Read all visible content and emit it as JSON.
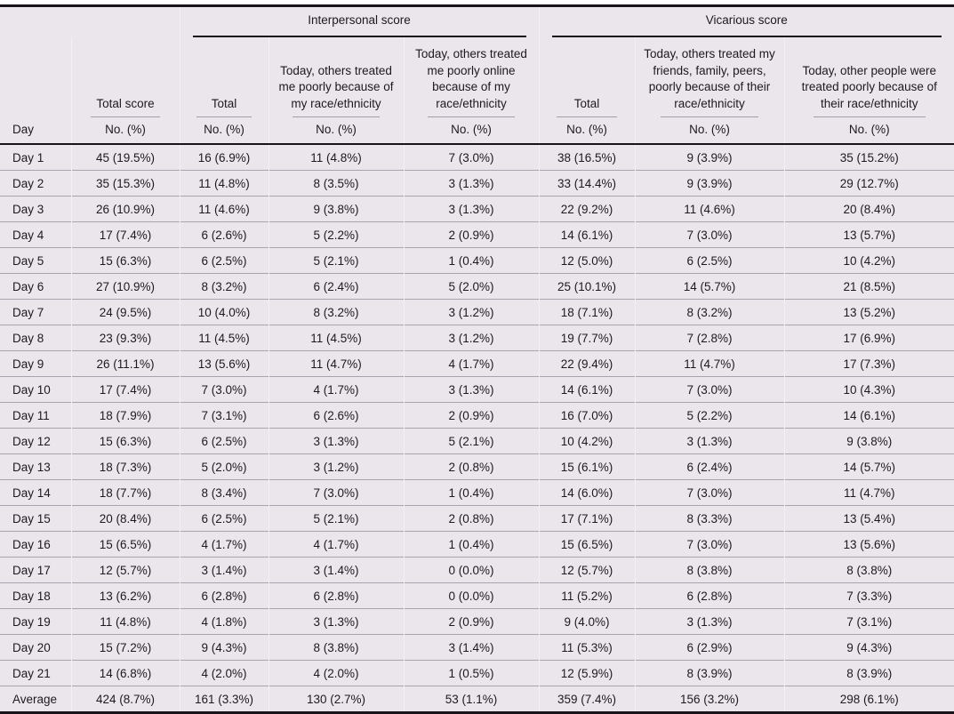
{
  "table": {
    "day_label": "Day",
    "no_pct": "No. (%)",
    "groups": [
      {
        "label": "Interpersonal score"
      },
      {
        "label": "Vicarious score"
      }
    ],
    "columns": [
      {
        "label": "Total score"
      },
      {
        "label": "Total"
      },
      {
        "label": "Today, others treated me poorly because of my race/ethnicity"
      },
      {
        "label": "Today, others treated me poorly online because of my race/ethnicity"
      },
      {
        "label": "Total"
      },
      {
        "label": "Today, others treated my friends, family, peers, poorly because of their race/ethnicity"
      },
      {
        "label": "Today, other people were treated poorly because of their race/ethnicity"
      }
    ],
    "rows": [
      {
        "day": "Day 1",
        "values": [
          "45 (19.5%)",
          "16 (6.9%)",
          "11 (4.8%)",
          "7 (3.0%)",
          "38 (16.5%)",
          "9 (3.9%)",
          "35 (15.2%)"
        ]
      },
      {
        "day": "Day 2",
        "values": [
          "35 (15.3%)",
          "11 (4.8%)",
          "8 (3.5%)",
          "3 (1.3%)",
          "33 (14.4%)",
          "9 (3.9%)",
          "29 (12.7%)"
        ]
      },
      {
        "day": "Day 3",
        "values": [
          "26 (10.9%)",
          "11 (4.6%)",
          "9 (3.8%)",
          "3 (1.3%)",
          "22 (9.2%)",
          "11 (4.6%)",
          "20 (8.4%)"
        ]
      },
      {
        "day": "Day 4",
        "values": [
          "17 (7.4%)",
          "6 (2.6%)",
          "5 (2.2%)",
          "2 (0.9%)",
          "14 (6.1%)",
          "7 (3.0%)",
          "13 (5.7%)"
        ]
      },
      {
        "day": "Day 5",
        "values": [
          "15 (6.3%)",
          "6 (2.5%)",
          "5 (2.1%)",
          "1 (0.4%)",
          "12 (5.0%)",
          "6 (2.5%)",
          "10 (4.2%)"
        ]
      },
      {
        "day": "Day 6",
        "values": [
          "27 (10.9%)",
          "8 (3.2%)",
          "6 (2.4%)",
          "5 (2.0%)",
          "25 (10.1%)",
          "14 (5.7%)",
          "21 (8.5%)"
        ]
      },
      {
        "day": "Day 7",
        "values": [
          "24 (9.5%)",
          "10 (4.0%)",
          "8 (3.2%)",
          "3 (1.2%)",
          "18 (7.1%)",
          "8 (3.2%)",
          "13 (5.2%)"
        ]
      },
      {
        "day": "Day 8",
        "values": [
          "23 (9.3%)",
          "11 (4.5%)",
          "11 (4.5%)",
          "3 (1.2%)",
          "19 (7.7%)",
          "7 (2.8%)",
          "17 (6.9%)"
        ]
      },
      {
        "day": "Day 9",
        "values": [
          "26 (11.1%)",
          "13 (5.6%)",
          "11 (4.7%)",
          "4 (1.7%)",
          "22 (9.4%)",
          "11 (4.7%)",
          "17 (7.3%)"
        ]
      },
      {
        "day": "Day 10",
        "values": [
          "17 (7.4%)",
          "7 (3.0%)",
          "4 (1.7%)",
          "3 (1.3%)",
          "14 (6.1%)",
          "7 (3.0%)",
          "10 (4.3%)"
        ]
      },
      {
        "day": "Day 11",
        "values": [
          "18 (7.9%)",
          "7 (3.1%)",
          "6 (2.6%)",
          "2 (0.9%)",
          "16 (7.0%)",
          "5 (2.2%)",
          "14 (6.1%)"
        ]
      },
      {
        "day": "Day 12",
        "values": [
          "15 (6.3%)",
          "6 (2.5%)",
          "3 (1.3%)",
          "5 (2.1%)",
          "10 (4.2%)",
          "3 (1.3%)",
          "9 (3.8%)"
        ]
      },
      {
        "day": "Day 13",
        "values": [
          "18 (7.3%)",
          "5 (2.0%)",
          "3 (1.2%)",
          "2 (0.8%)",
          "15 (6.1%)",
          "6 (2.4%)",
          "14 (5.7%)"
        ]
      },
      {
        "day": "Day 14",
        "values": [
          "18 (7.7%)",
          "8 (3.4%)",
          "7 (3.0%)",
          "1 (0.4%)",
          "14 (6.0%)",
          "7 (3.0%)",
          "11 (4.7%)"
        ]
      },
      {
        "day": "Day 15",
        "values": [
          "20 (8.4%)",
          "6 (2.5%)",
          "5 (2.1%)",
          "2 (0.8%)",
          "17 (7.1%)",
          "8 (3.3%)",
          "13 (5.4%)"
        ]
      },
      {
        "day": "Day 16",
        "values": [
          "15 (6.5%)",
          "4 (1.7%)",
          "4 (1.7%)",
          "1 (0.4%)",
          "15 (6.5%)",
          "7 (3.0%)",
          "13 (5.6%)"
        ]
      },
      {
        "day": "Day 17",
        "values": [
          "12 (5.7%)",
          "3 (1.4%)",
          "3 (1.4%)",
          "0 (0.0%)",
          "12 (5.7%)",
          "8 (3.8%)",
          "8 (3.8%)"
        ]
      },
      {
        "day": "Day 18",
        "values": [
          "13 (6.2%)",
          "6 (2.8%)",
          "6 (2.8%)",
          "0 (0.0%)",
          "11 (5.2%)",
          "6 (2.8%)",
          "7 (3.3%)"
        ]
      },
      {
        "day": "Day 19",
        "values": [
          "11 (4.8%)",
          "4 (1.8%)",
          "3 (1.3%)",
          "2 (0.9%)",
          "9 (4.0%)",
          "3 (1.3%)",
          "7 (3.1%)"
        ]
      },
      {
        "day": "Day 20",
        "values": [
          "15 (7.2%)",
          "9 (4.3%)",
          "8 (3.8%)",
          "3 (1.4%)",
          "11 (5.3%)",
          "6 (2.9%)",
          "9 (4.3%)"
        ]
      },
      {
        "day": "Day 21",
        "values": [
          "14 (6.8%)",
          "4 (2.0%)",
          "4 (2.0%)",
          "1 (0.5%)",
          "12 (5.9%)",
          "8 (3.9%)",
          "8 (3.9%)"
        ]
      },
      {
        "day": "Average",
        "values": [
          "424 (8.7%)",
          "161 (3.3%)",
          "130 (2.7%)",
          "53 (1.1%)",
          "359 (7.4%)",
          "156 (3.2%)",
          "298 (6.1%)"
        ]
      }
    ]
  },
  "colors": {
    "table_background": "#ebe5ec",
    "heavy_rule": "#18141a",
    "light_rule": "#aba2b0",
    "text": "#1d1a1f"
  }
}
